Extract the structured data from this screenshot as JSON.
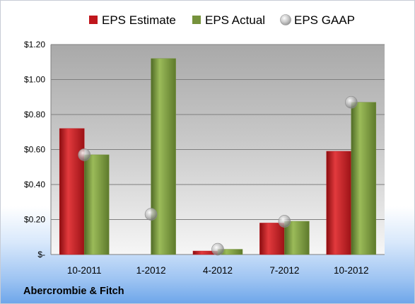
{
  "company": "Abercrombie & Fitch",
  "chart_data": {
    "type": "bar",
    "categories": [
      "10-2011",
      "1-2012",
      "4-2012",
      "7-2012",
      "10-2012"
    ],
    "series": [
      {
        "name": "EPS Estimate",
        "kind": "bar",
        "color": "#c0161c",
        "values": [
          0.72,
          null,
          0.02,
          0.18,
          0.59
        ]
      },
      {
        "name": "EPS Actual",
        "kind": "bar",
        "color": "#76923c",
        "values": [
          0.57,
          1.12,
          0.03,
          0.19,
          0.87
        ]
      },
      {
        "name": "EPS GAAP",
        "kind": "marker",
        "color": "#a6a6a6",
        "values": [
          0.57,
          0.23,
          0.03,
          0.19,
          0.87
        ]
      }
    ],
    "ylim": [
      0,
      1.2
    ],
    "yticks": [
      0,
      0.2,
      0.4,
      0.6,
      0.8,
      1.0,
      1.2
    ],
    "ytick_labels": [
      "$-",
      "$0.20",
      "$0.40",
      "$0.60",
      "$0.80",
      "$1.00",
      "$1.20"
    ],
    "grid": true,
    "legend_position": "top"
  }
}
